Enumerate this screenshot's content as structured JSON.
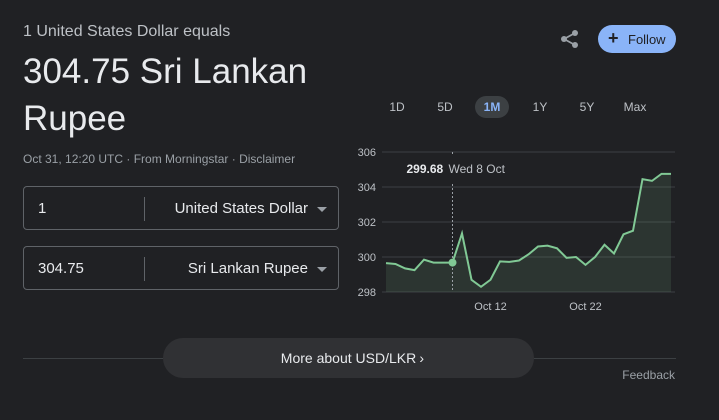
{
  "header": {
    "subtitle": "1 United States Dollar equals",
    "amount_line1": "304.75 Sri Lankan",
    "amount_line2": "Rupee"
  },
  "meta": {
    "timestamp": "Oct 31, 12:20 UTC",
    "separator": " · ",
    "source": "From Morningstar",
    "disclaimer": "Disclaimer"
  },
  "converter": {
    "from_amount": "1",
    "from_currency": "United States Dollar",
    "to_amount": "304.75",
    "to_currency": "Sri Lankan Rupee"
  },
  "actions": {
    "share_icon": "share-icon",
    "follow_label": "Follow",
    "follow_icon": "plus-icon"
  },
  "range_tabs": [
    "1D",
    "5D",
    "1M",
    "1Y",
    "5Y",
    "Max"
  ],
  "active_tab": "1M",
  "tooltip": {
    "value": "299.68",
    "date": "Wed 8 Oct"
  },
  "footer": {
    "more_about": "More about USD/LKR",
    "feedback": "Feedback"
  },
  "colors": {
    "background": "#202124",
    "accent": "#8ab4f8",
    "line": "#81c995"
  },
  "chart_data": {
    "type": "line",
    "x": [
      "Oct 1",
      "Oct 2",
      "Oct 3",
      "Oct 4",
      "Oct 5",
      "Oct 6",
      "Oct 7",
      "Oct 8",
      "Oct 9",
      "Oct 10",
      "Oct 11",
      "Oct 12",
      "Oct 13",
      "Oct 14",
      "Oct 15",
      "Oct 16",
      "Oct 17",
      "Oct 18",
      "Oct 19",
      "Oct 20",
      "Oct 21",
      "Oct 22",
      "Oct 23",
      "Oct 24",
      "Oct 25",
      "Oct 26",
      "Oct 27",
      "Oct 28",
      "Oct 29",
      "Oct 30",
      "Oct 31"
    ],
    "values": [
      299.65,
      299.6,
      299.35,
      299.25,
      299.85,
      299.68,
      299.68,
      299.68,
      301.35,
      298.7,
      298.3,
      298.7,
      299.75,
      299.72,
      299.8,
      300.15,
      300.6,
      300.65,
      300.5,
      299.95,
      300.0,
      299.55,
      300.0,
      300.7,
      300.2,
      301.3,
      301.5,
      304.45,
      304.35,
      304.75,
      304.75
    ],
    "highlight_index": 7,
    "x_ticks": [
      "Oct 12",
      "Oct 22"
    ],
    "y_ticks": [
      298,
      300,
      302,
      304,
      306
    ],
    "ylim": [
      298,
      306
    ],
    "grid": true,
    "title": "",
    "xlabel": "",
    "ylabel": ""
  }
}
